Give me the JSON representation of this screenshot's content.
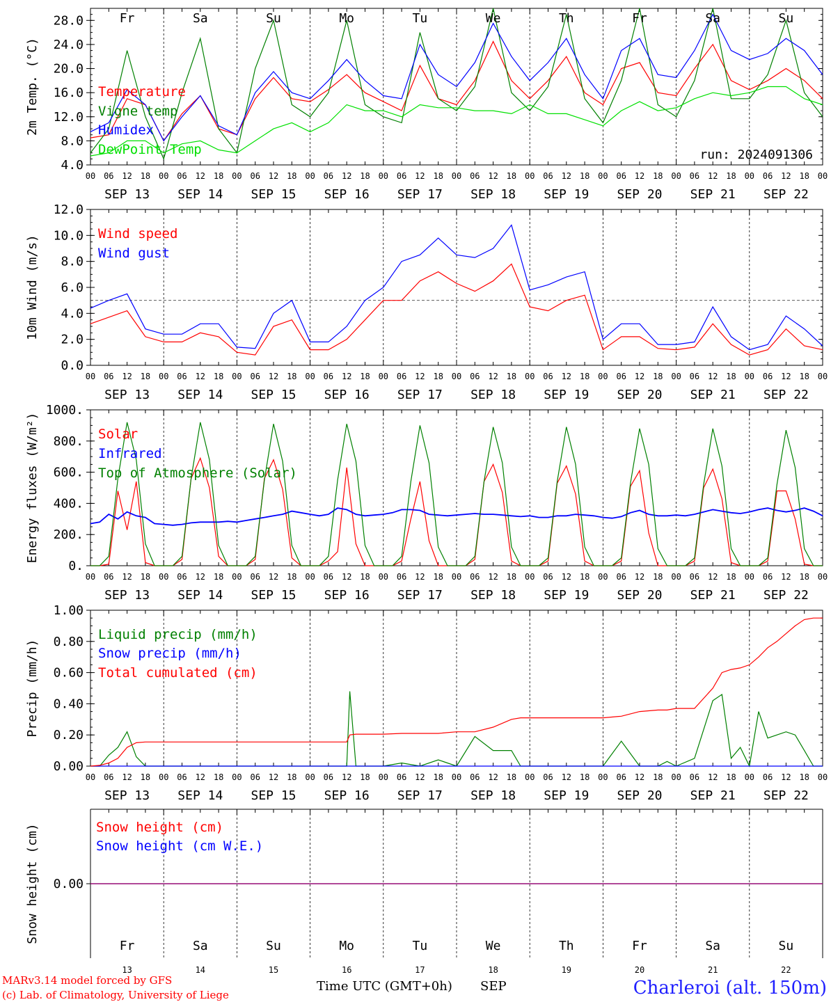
{
  "chart_data": [
    {
      "type": "line",
      "ylabel": "2m Temp. (°C)",
      "ylim": [
        4,
        30
      ],
      "yticks": [
        "4.0",
        "8.0",
        "12.0",
        "16.0",
        "20.0",
        "24.0",
        "28.0"
      ],
      "run_label": "run: 2024091306",
      "legend_placement": "left",
      "x_hours": [
        0,
        6,
        12,
        18,
        24,
        30,
        36,
        42,
        48,
        54,
        60,
        66,
        72,
        78,
        84,
        90,
        96,
        102,
        108,
        114,
        120,
        126,
        132,
        138,
        144,
        150,
        156,
        162,
        168,
        174,
        180,
        186,
        192,
        198,
        204,
        210,
        216,
        222,
        228,
        234,
        240
      ],
      "series": [
        {
          "name": "Temperature",
          "color": "#ff0000",
          "values": [
            8.5,
            9,
            15,
            14,
            8,
            12.5,
            15.5,
            10,
            9,
            15,
            18.5,
            15,
            14.5,
            16.5,
            19,
            16,
            14.5,
            13,
            20.5,
            15,
            14,
            18,
            24.5,
            18,
            15,
            18,
            22,
            16,
            14,
            20,
            21,
            16,
            15.5,
            20,
            24,
            18,
            16.5,
            18,
            20,
            18,
            15
          ]
        },
        {
          "name": "Vigne temp",
          "color": "#008000",
          "values": [
            6,
            10,
            23,
            12,
            5,
            16,
            25,
            10,
            6,
            20,
            28,
            14,
            12,
            16,
            28,
            14,
            12,
            11,
            26,
            15,
            13,
            17,
            30,
            16,
            13,
            17,
            29,
            15,
            11,
            18,
            30,
            14,
            12,
            18,
            30,
            15,
            15,
            19,
            28,
            16,
            12
          ]
        },
        {
          "name": "Humidex",
          "color": "#0000ff",
          "values": [
            9.5,
            11,
            16.5,
            14,
            8,
            12,
            15.5,
            10.5,
            9,
            16,
            19.5,
            16,
            15,
            18,
            21.5,
            18,
            15.5,
            15,
            24,
            19,
            17,
            21,
            27.5,
            22,
            18,
            21,
            25,
            19,
            15,
            23,
            25,
            19,
            18.5,
            23,
            29,
            23,
            21.5,
            22.5,
            25,
            23,
            19
          ]
        },
        {
          "name": "DewPoint Temp",
          "color": "#00e000",
          "values": [
            5.5,
            6,
            8,
            8,
            6,
            7.5,
            8,
            6.5,
            6,
            8,
            10,
            11,
            9.5,
            11,
            14,
            13,
            13,
            12,
            14,
            13.5,
            13.5,
            13,
            13,
            12.5,
            14,
            12.5,
            12.5,
            11.5,
            10.5,
            13,
            14.5,
            13,
            13.5,
            15,
            16,
            15.5,
            16,
            17,
            17,
            15,
            14
          ]
        }
      ]
    },
    {
      "type": "line",
      "ylabel": "10m Wind (m/s)",
      "ylim": [
        0,
        12
      ],
      "yticks": [
        "0.0",
        "2.0",
        "4.0",
        "6.0",
        "8.0",
        "10.0",
        "12.0"
      ],
      "reference_line": 5,
      "x_hours": [
        0,
        6,
        12,
        18,
        24,
        30,
        36,
        42,
        48,
        54,
        60,
        66,
        72,
        78,
        84,
        90,
        96,
        102,
        108,
        114,
        120,
        126,
        132,
        138,
        144,
        150,
        156,
        162,
        168,
        174,
        180,
        186,
        192,
        198,
        204,
        210,
        216,
        222,
        228,
        234,
        240
      ],
      "series": [
        {
          "name": "Wind speed",
          "color": "#ff0000",
          "values": [
            3.2,
            3.7,
            4.2,
            2.2,
            1.8,
            1.8,
            2.5,
            2.2,
            1,
            0.8,
            3,
            3.5,
            1.2,
            1.2,
            2,
            3.5,
            5,
            5,
            6.5,
            7.2,
            6.3,
            5.7,
            6.5,
            7.8,
            4.5,
            4.2,
            5,
            5.4,
            1.2,
            2.2,
            2.2,
            1.3,
            1.2,
            1.4,
            3.2,
            1.6,
            0.8,
            1.2,
            2.8,
            1.5,
            1.2
          ]
        },
        {
          "name": "Wind gust",
          "color": "#0000ff",
          "values": [
            4.4,
            5,
            5.5,
            2.8,
            2.4,
            2.4,
            3.2,
            3.2,
            1.4,
            1.3,
            4,
            5,
            1.8,
            1.8,
            3,
            5,
            6,
            8,
            8.5,
            9.8,
            8.5,
            8.3,
            9,
            10.8,
            5.8,
            6.2,
            6.8,
            7.2,
            2,
            3.2,
            3.2,
            1.6,
            1.6,
            1.8,
            4.5,
            2.2,
            1.2,
            1.6,
            3.8,
            2.8,
            1.5
          ]
        }
      ]
    },
    {
      "type": "line",
      "ylabel": "Energy fluxes (W/m²)",
      "ylim": [
        0,
        1000
      ],
      "yticks": [
        "0.",
        "200.",
        "400.",
        "600.",
        "800.",
        "1000."
      ],
      "x_hours": [
        0,
        3,
        6,
        9,
        12,
        15,
        18,
        21,
        24,
        27,
        30,
        33,
        36,
        39,
        42,
        45,
        48,
        51,
        54,
        57,
        60,
        63,
        66,
        69,
        72,
        75,
        78,
        81,
        84,
        87,
        90,
        93,
        96,
        99,
        102,
        105,
        108,
        111,
        114,
        117,
        120,
        123,
        126,
        129,
        132,
        135,
        138,
        141,
        144,
        147,
        150,
        153,
        156,
        159,
        162,
        165,
        168,
        171,
        174,
        177,
        180,
        183,
        186,
        189,
        192,
        195,
        198,
        201,
        204,
        207,
        210,
        213,
        216,
        219,
        222,
        225,
        228,
        231,
        234,
        237,
        240
      ],
      "series": [
        {
          "name": "Solar",
          "color": "#ff0000",
          "values": [
            0,
            0,
            10,
            480,
            230,
            540,
            20,
            0,
            0,
            0,
            40,
            560,
            690,
            500,
            60,
            0,
            0,
            0,
            40,
            560,
            680,
            490,
            50,
            0,
            0,
            0,
            30,
            90,
            630,
            140,
            0,
            0,
            0,
            0,
            30,
            300,
            540,
            160,
            0,
            0,
            0,
            0,
            40,
            540,
            650,
            470,
            30,
            0,
            0,
            0,
            30,
            530,
            640,
            460,
            30,
            0,
            0,
            0,
            30,
            510,
            610,
            210,
            0,
            0,
            0,
            0,
            30,
            500,
            620,
            430,
            20,
            0,
            0,
            0,
            30,
            480,
            480,
            300,
            10,
            0,
            0
          ]
        },
        {
          "name": "Infrared",
          "color": "#0000ff",
          "values": [
            270,
            280,
            330,
            300,
            345,
            320,
            310,
            270,
            265,
            260,
            265,
            275,
            280,
            280,
            280,
            285,
            280,
            290,
            300,
            310,
            320,
            330,
            350,
            340,
            330,
            320,
            330,
            370,
            360,
            330,
            320,
            325,
            330,
            340,
            360,
            360,
            355,
            330,
            325,
            320,
            325,
            330,
            335,
            330,
            330,
            325,
            320,
            315,
            320,
            310,
            310,
            320,
            320,
            330,
            325,
            320,
            310,
            305,
            315,
            340,
            355,
            330,
            320,
            320,
            325,
            320,
            330,
            345,
            360,
            350,
            340,
            335,
            345,
            360,
            370,
            355,
            345,
            355,
            370,
            350,
            320
          ]
        },
        {
          "name": "Top of Atmosphere (Solar)",
          "color": "#008000",
          "values": [
            0,
            0,
            60,
            560,
            920,
            680,
            140,
            0,
            0,
            0,
            60,
            560,
            920,
            680,
            130,
            0,
            0,
            0,
            60,
            550,
            910,
            670,
            130,
            0,
            0,
            0,
            60,
            550,
            910,
            670,
            130,
            0,
            0,
            0,
            60,
            540,
            900,
            660,
            120,
            0,
            0,
            0,
            60,
            540,
            890,
            660,
            120,
            0,
            0,
            0,
            50,
            540,
            890,
            650,
            120,
            0,
            0,
            0,
            50,
            530,
            880,
            650,
            110,
            0,
            0,
            0,
            50,
            520,
            880,
            640,
            110,
            0,
            0,
            0,
            50,
            520,
            870,
            630,
            110,
            0,
            0
          ]
        }
      ]
    },
    {
      "type": "line",
      "ylabel": "Precip (mm/h)",
      "ylim": [
        0,
        1
      ],
      "yticks": [
        "0.00",
        "0.20",
        "0.40",
        "0.60",
        "0.80",
        "1.00"
      ],
      "x_hours": [
        0,
        3,
        6,
        9,
        12,
        15,
        18,
        21,
        24,
        30,
        36,
        48,
        60,
        72,
        81,
        84,
        85,
        87,
        90,
        96,
        102,
        108,
        114,
        120,
        126,
        132,
        138,
        141,
        144,
        147,
        150,
        156,
        162,
        168,
        174,
        180,
        186,
        189,
        192,
        198,
        204,
        207,
        210,
        213,
        216,
        219,
        222,
        225,
        228,
        231,
        234,
        237,
        240
      ],
      "series": [
        {
          "name": "Liquid precip (mm/h)",
          "color": "#008000",
          "values": [
            0,
            0,
            0.07,
            0.12,
            0.22,
            0.06,
            0,
            0,
            0,
            0,
            0,
            0,
            0,
            0,
            0,
            0,
            0.48,
            0,
            0,
            0,
            0.02,
            0,
            0.04,
            0,
            0.19,
            0.1,
            0.1,
            0,
            0,
            0,
            0,
            0,
            0,
            0,
            0.16,
            0,
            0,
            0.03,
            0,
            0.05,
            0.42,
            0.46,
            0.05,
            0.12,
            0,
            0.35,
            0.18,
            0.2,
            0.22,
            0.2,
            0.1,
            0,
            0
          ]
        },
        {
          "name": "Snow precip (mm/h)",
          "color": "#0000ff",
          "values": [
            0,
            0,
            0,
            0,
            0,
            0,
            0,
            0,
            0,
            0,
            0,
            0,
            0,
            0,
            0,
            0,
            0,
            0,
            0,
            0,
            0,
            0,
            0,
            0,
            0,
            0,
            0,
            0,
            0,
            0,
            0,
            0,
            0,
            0,
            0,
            0,
            0,
            0,
            0,
            0,
            0,
            0,
            0,
            0,
            0,
            0,
            0,
            0,
            0,
            0,
            0,
            0,
            0
          ]
        },
        {
          "name": "Total cumulated (cm)",
          "color": "#ff0000",
          "values": [
            0,
            0.005,
            0.02,
            0.05,
            0.12,
            0.15,
            0.155,
            0.155,
            0.155,
            0.155,
            0.155,
            0.155,
            0.155,
            0.155,
            0.155,
            0.155,
            0.2,
            0.205,
            0.205,
            0.205,
            0.21,
            0.21,
            0.21,
            0.22,
            0.22,
            0.25,
            0.3,
            0.31,
            0.31,
            0.31,
            0.31,
            0.31,
            0.31,
            0.31,
            0.32,
            0.35,
            0.36,
            0.36,
            0.37,
            0.37,
            0.5,
            0.6,
            0.62,
            0.63,
            0.65,
            0.7,
            0.76,
            0.8,
            0.85,
            0.9,
            0.94,
            0.95,
            0.95
          ]
        }
      ]
    },
    {
      "type": "line",
      "ylabel": "Snow height (cm)",
      "yticks": [
        "0.00"
      ],
      "x_hours": [
        0,
        240
      ],
      "series": [
        {
          "name": "Snow height (cm)",
          "color": "#ff0000",
          "values": [
            0,
            0
          ]
        },
        {
          "name": "Snow height (cm W.E.)",
          "color": "#0000ff",
          "values": [
            0,
            0
          ]
        }
      ]
    }
  ],
  "x_axis": {
    "hour_ticks": [
      "00",
      "06",
      "12",
      "18"
    ],
    "dates": [
      "SEP 13",
      "SEP 14",
      "SEP 15",
      "SEP 16",
      "SEP 17",
      "SEP 18",
      "SEP 19",
      "SEP 20",
      "SEP 21",
      "SEP 22"
    ],
    "weekdays": [
      "Fr",
      "Sa",
      "Su",
      "Mo",
      "Tu",
      "We",
      "Th",
      "Fr",
      "Sa",
      "Su"
    ],
    "weekend_color": "#ff0000",
    "weekday_color": "#000000",
    "day_numbers": [
      "13",
      "14",
      "15",
      "16",
      "17",
      "18",
      "19",
      "20",
      "21",
      "22"
    ],
    "xlabel": "Time UTC (GMT+0h)",
    "month": "SEP"
  },
  "footer": {
    "model": "MARv3.14 model forced by GFS",
    "credit": "(c) Lab. of Climatology, University of Liege",
    "station": "Charleroi (alt. 150m)",
    "station_color": "#1f1fff"
  },
  "colors": {
    "accent_red": "#ff0000",
    "accent_green": "#008000",
    "accent_blue": "#0000ff",
    "light_green": "#00e000",
    "purple": "#800080"
  }
}
